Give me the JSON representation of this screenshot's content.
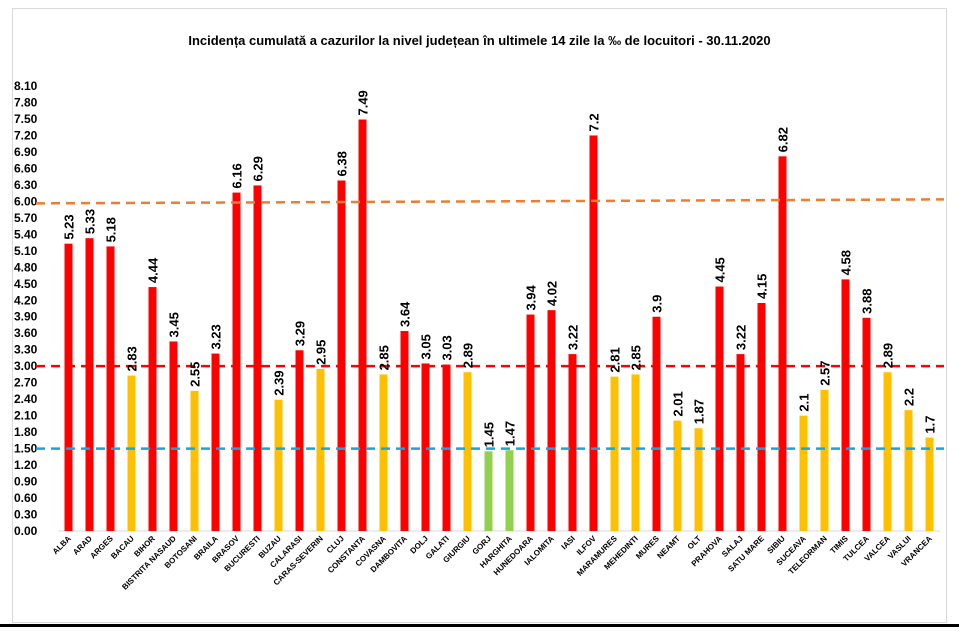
{
  "chart_data": {
    "type": "bar",
    "title": "Incidența cumulată a cazurilor la nivel județean în ultimele 14 zile la ‰ de locuitori - 30.11.2020",
    "categories": [
      "ALBA",
      "ARAD",
      "ARGES",
      "BACAU",
      "BIHOR",
      "BISTRITA NASAUD",
      "BOTOSANI",
      "BRAILA",
      "BRASOV",
      "BUCURESTI",
      "BUZAU",
      "CALARASI",
      "CARAS-SEVERIN",
      "CLUJ",
      "CONSTANTA",
      "COVASNA",
      "DAMBOVITA",
      "DOLJ",
      "GALATI",
      "GIURGIU",
      "GORJ",
      "HARGHITA",
      "HUNEDOARA",
      "IALOMITA",
      "IASI",
      "ILFOV",
      "MARAMURES",
      "MEHEDINTI",
      "MURES",
      "NEAMT",
      "OLT",
      "PRAHOVA",
      "SALAJ",
      "SATU MARE",
      "SIBIU",
      "SUCEAVA",
      "TELEORMAN",
      "TIMIS",
      "TULCEA",
      "VALCEA",
      "VASLUI",
      "VRANCEA"
    ],
    "values": [
      5.23,
      5.33,
      5.18,
      2.83,
      4.44,
      3.45,
      2.55,
      3.23,
      6.16,
      6.29,
      2.39,
      3.29,
      2.95,
      6.38,
      7.49,
      2.85,
      3.64,
      3.05,
      3.03,
      2.89,
      1.45,
      1.47,
      3.94,
      4.02,
      3.22,
      7.2,
      2.81,
      2.85,
      3.9,
      2.01,
      1.87,
      4.45,
      3.22,
      4.15,
      6.82,
      2.1,
      2.57,
      4.58,
      3.88,
      2.89,
      2.2,
      1.7
    ],
    "value_labels": [
      "5.23",
      "5.33",
      "5.18",
      "2.83",
      "4.44",
      "3.45",
      "2.55",
      "3.23",
      "6.16",
      "6.29",
      "2.39",
      "3.29",
      "2.95",
      "6.38",
      "7.49",
      "2.85",
      "3.64",
      "3.05",
      "3.03",
      "2.89",
      "1.45",
      "1.47",
      "3.94",
      "4.02",
      "3.22",
      "7.2",
      "2.81",
      "2.85",
      "3.9",
      "2.01",
      "1.87",
      "4.45",
      "3.22",
      "4.15",
      "6.82",
      "2.1",
      "2.57",
      "4.58",
      "3.88",
      "2.89",
      "2.2",
      "1.7"
    ],
    "y_ticks": [
      "0.00",
      "0.30",
      "0.60",
      "0.90",
      "1.20",
      "1.50",
      "1.80",
      "2.10",
      "2.40",
      "2.70",
      "3.00",
      "3.30",
      "3.60",
      "3.90",
      "4.20",
      "4.50",
      "4.80",
      "5.10",
      "5.40",
      "5.70",
      "6.00",
      "6.30",
      "6.60",
      "6.90",
      "7.20",
      "7.50",
      "7.80",
      "8.10"
    ],
    "ylim": [
      0,
      8.1
    ],
    "threshold_lines": [
      {
        "value": 6.0,
        "color": "#ed7d31"
      },
      {
        "value": 3.0,
        "color": "#ff0000"
      },
      {
        "value": 1.5,
        "color": "#1fa2d6"
      }
    ],
    "colors": {
      "above_3": "#ff0000",
      "between_1_5_and_3": "#ffc000",
      "below_1_5": "#92d050"
    },
    "grid": false,
    "legend": "none"
  }
}
